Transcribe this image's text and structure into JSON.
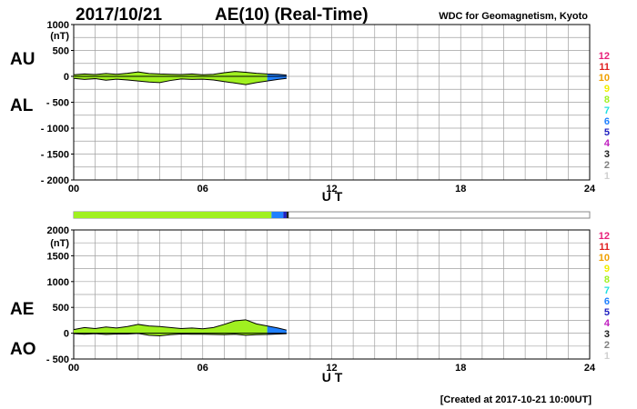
{
  "header": {
    "date": "2017/10/21",
    "title": "AE(10) (Real-Time)",
    "source": "WDC for Geomagnetism, Kyoto"
  },
  "footer": {
    "created": "[Created at 2017-10-21 10:00UT]"
  },
  "legend_counts": {
    "labels": [
      "12",
      "11",
      "10",
      "9",
      "8",
      "7",
      "6",
      "5",
      "4",
      "3",
      "2",
      "1"
    ],
    "colors": [
      "#e8207a",
      "#e02020",
      "#f0a000",
      "#f0f000",
      "#a0f020",
      "#20e0e0",
      "#2080ff",
      "#2020c0",
      "#c020c0",
      "#202020",
      "#808080",
      "#d0d0d0"
    ]
  },
  "chart_data": [
    {
      "type": "area",
      "panel": "upper",
      "side_labels": [
        "AU",
        "AL"
      ],
      "unit": "(nT)",
      "ylim": [
        -2000,
        1000
      ],
      "yticks": [
        1000,
        500,
        0,
        -500,
        -1000,
        -1500,
        -2000
      ],
      "ytick_labels": [
        "1000",
        "500",
        "0",
        "- 500",
        "- 1000",
        "- 1500",
        "- 2000"
      ],
      "xlim": [
        0,
        24
      ],
      "xticks": [
        0,
        6,
        12,
        18,
        24
      ],
      "xtick_labels": [
        "00",
        "06",
        "12",
        "18",
        "24"
      ],
      "xlabel": "U T",
      "grid": true,
      "x": [
        0,
        0.5,
        1,
        1.5,
        2,
        2.5,
        3,
        3.5,
        4,
        4.5,
        5,
        5.5,
        6,
        6.5,
        7,
        7.5,
        8,
        8.5,
        9,
        9.5,
        9.9
      ],
      "series": [
        {
          "values": [
            30,
            45,
            35,
            55,
            40,
            60,
            85,
            55,
            45,
            40,
            35,
            45,
            30,
            40,
            70,
            95,
            80,
            60,
            45,
            40,
            25
          ]
        },
        {
          "values": [
            -40,
            -60,
            -45,
            -75,
            -55,
            -70,
            -90,
            -110,
            -120,
            -80,
            -50,
            -60,
            -55,
            -70,
            -100,
            -130,
            -160,
            -120,
            -90,
            -60,
            -40
          ]
        }
      ]
    },
    {
      "type": "area",
      "panel": "lower",
      "side_labels": [
        "AE",
        "AO"
      ],
      "unit": "(nT)",
      "ylim": [
        -500,
        2000
      ],
      "yticks": [
        2000,
        1500,
        1000,
        500,
        0,
        -500
      ],
      "ytick_labels": [
        "2000",
        "1500",
        "1000",
        "500",
        "0",
        "- 500"
      ],
      "xlim": [
        0,
        24
      ],
      "xticks": [
        0,
        6,
        12,
        18,
        24
      ],
      "xtick_labels": [
        "00",
        "06",
        "12",
        "18",
        "24"
      ],
      "xlabel": "U T",
      "grid": true,
      "x": [
        0,
        0.5,
        1,
        1.5,
        2,
        2.5,
        3,
        3.5,
        4,
        4.5,
        5,
        5.5,
        6,
        6.5,
        7,
        7.5,
        8,
        8.5,
        9,
        9.5,
        9.9
      ],
      "series": [
        {
          "values": [
            70,
            110,
            90,
            120,
            100,
            130,
            170,
            140,
            130,
            110,
            90,
            100,
            85,
            110,
            170,
            240,
            260,
            180,
            140,
            100,
            60
          ]
        },
        {
          "values": [
            -10,
            -20,
            -10,
            -25,
            -15,
            -15,
            -5,
            -40,
            -50,
            -30,
            -15,
            -20,
            -20,
            -25,
            -30,
            -20,
            -40,
            -30,
            -25,
            -15,
            -10
          ]
        }
      ]
    }
  ],
  "station_bar": {
    "segments": [
      {
        "start": 0,
        "end": 9.2,
        "color": "#a0f020"
      },
      {
        "start": 9.2,
        "end": 9.75,
        "color": "#2080ff"
      },
      {
        "start": 9.75,
        "end": 9.9,
        "color": "#2020c0"
      },
      {
        "start": 9.9,
        "end": 10.0,
        "color": "#202020"
      }
    ]
  },
  "colors": {
    "fill_main": "#a0f020",
    "fill_recent": "#2080ff",
    "grid": "#a0a0a0",
    "axis": "#000000"
  },
  "recent_from_hour": 9.2
}
